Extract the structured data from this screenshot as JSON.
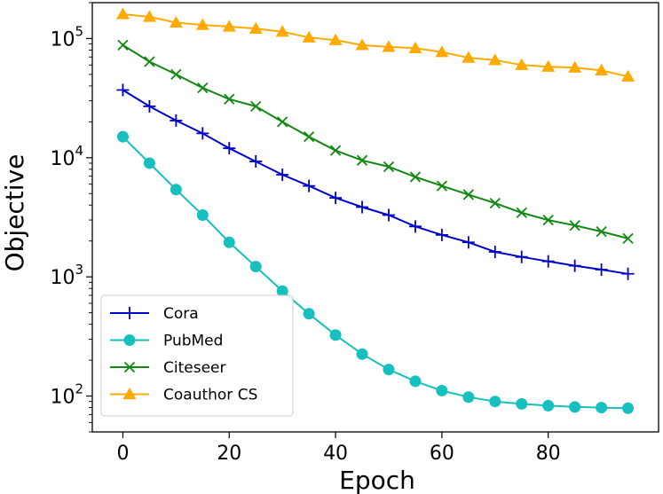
{
  "chart_data": {
    "type": "line",
    "xlabel": "Epoch",
    "ylabel": "Objective",
    "yscale": "log",
    "xlim": [
      -5.75,
      100.75
    ],
    "ylim": [
      50,
      200000
    ],
    "x_ticks": [
      0,
      20,
      40,
      60,
      80
    ],
    "y_ticks": [
      {
        "value": 100,
        "base": "10",
        "exp": "2"
      },
      {
        "value": 1000,
        "base": "10",
        "exp": "3"
      },
      {
        "value": 10000,
        "base": "10",
        "exp": "4"
      },
      {
        "value": 100000,
        "base": "10",
        "exp": "5"
      }
    ],
    "legend_position": "lower-left",
    "x": [
      0,
      5,
      10,
      15,
      20,
      25,
      30,
      35,
      40,
      45,
      50,
      55,
      60,
      65,
      70,
      75,
      80,
      85,
      90,
      95
    ],
    "series": [
      {
        "name": "Cora",
        "color": "#0000cc",
        "marker": "plus",
        "values": [
          37000,
          27000,
          20500,
          16000,
          12000,
          9300,
          7200,
          5800,
          4600,
          3850,
          3300,
          2650,
          2250,
          1950,
          1620,
          1470,
          1350,
          1240,
          1150,
          1060
        ]
      },
      {
        "name": "PubMed",
        "color": "#17bfbf",
        "marker": "circle",
        "values": [
          15000,
          9000,
          5400,
          3300,
          1950,
          1220,
          760,
          490,
          325,
          225,
          167,
          133,
          111,
          98,
          90,
          86,
          83,
          81,
          80,
          79
        ]
      },
      {
        "name": "Citeseer",
        "color": "#118811",
        "marker": "x",
        "values": [
          88000,
          64000,
          50000,
          38500,
          31000,
          27000,
          20000,
          15000,
          11500,
          9500,
          8400,
          6900,
          5800,
          4900,
          4150,
          3450,
          3000,
          2700,
          2400,
          2100
        ]
      },
      {
        "name": "Coauthor CS",
        "color": "#ffaa00",
        "marker": "triangle",
        "values": [
          160000,
          152000,
          136000,
          130000,
          126000,
          121000,
          114000,
          102000,
          97000,
          88000,
          85000,
          83000,
          77000,
          69000,
          66000,
          60000,
          58000,
          57000,
          54000,
          48000
        ]
      }
    ]
  }
}
